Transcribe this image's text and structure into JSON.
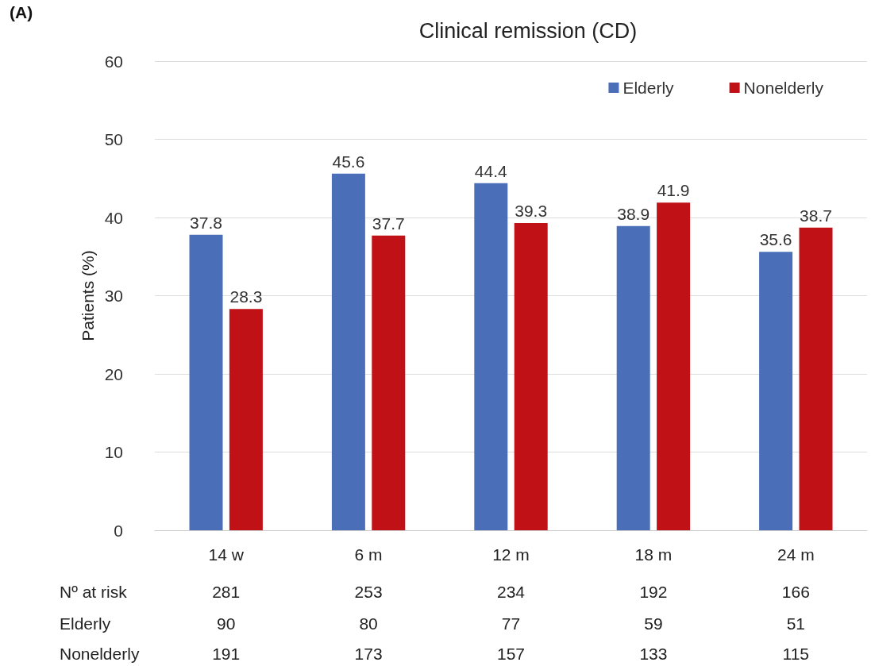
{
  "chart_data": {
    "type": "bar",
    "title": "Clinical remission (CD)",
    "ylabel": "Patients (%)",
    "categories": [
      "14 w",
      "6 m",
      "12 m",
      "18 m",
      "24 m"
    ],
    "series": [
      {
        "name": "Elderly",
        "color": "#4a6fb8",
        "values": [
          37.8,
          45.6,
          44.4,
          38.9,
          35.6
        ]
      },
      {
        "name": "Nonelderly",
        "color": "#c01216",
        "values": [
          28.3,
          37.7,
          39.3,
          41.9,
          38.7
        ]
      }
    ],
    "ylim": [
      0,
      60
    ],
    "yticks": [
      0,
      10,
      20,
      30,
      40,
      50,
      60
    ],
    "grid": "y",
    "legend": "top right",
    "data_labels": true,
    "annotations": [
      "(A)",
      "Nº at risk",
      "281",
      "253",
      "234",
      "192",
      "166",
      "Elderly",
      "90",
      "80",
      "77",
      "59",
      "51",
      "Nonelderly",
      "191",
      "173",
      "157",
      "133",
      "115"
    ]
  }
}
